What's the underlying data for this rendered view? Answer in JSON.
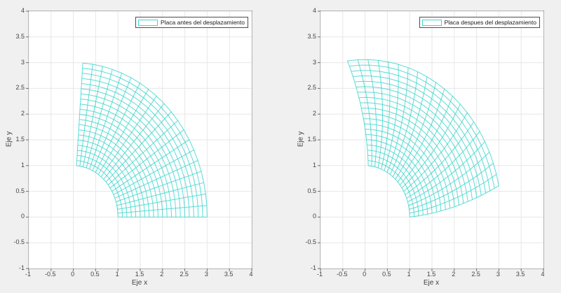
{
  "figure": {
    "colors": {
      "figure_bg": "#f0f0f0",
      "plot_bg": "#ffffff",
      "grid": "#e7e7e7",
      "axis_box": "#8c8c8c",
      "tick_mark": "#6e6e6e",
      "tick_label": "#424242",
      "mesh_line": "#3fd6ce",
      "legend_border": "#4d4d4d",
      "legend_text": "#1a1a1a"
    }
  },
  "chart_data": [
    {
      "type": "mesh",
      "subplot": "left",
      "legend": "Placa antes del desplazamiento",
      "xlabel": "Eje x",
      "ylabel": "Eje y",
      "xlim": [
        -1,
        4
      ],
      "ylim": [
        -1,
        4
      ],
      "xticks": [
        -1,
        -0.5,
        0,
        0.5,
        1,
        1.5,
        2,
        2.5,
        3,
        3.5,
        4
      ],
      "yticks": [
        -1,
        -0.5,
        0,
        0.5,
        1,
        1.5,
        2,
        2.5,
        3,
        3.5,
        4
      ],
      "grid": true,
      "legend_position": "top-right",
      "mesh": {
        "shape": "annular-sector",
        "color": "#3fd6ce",
        "r_min": 1,
        "r_max": 3,
        "r_divisions": 20,
        "theta_min_rad": 0,
        "theta_max_rad": 1.5,
        "theta_divisions": 20,
        "twist_rad_per_unit_r": 0,
        "radial_stretch_coeff": 0
      }
    },
    {
      "type": "mesh",
      "subplot": "right",
      "legend": "Placa despues del desplazamiento",
      "xlabel": "Eje x",
      "ylabel": "Eje y",
      "xlim": [
        -1,
        4
      ],
      "ylim": [
        -1,
        4
      ],
      "xticks": [
        -1,
        -0.5,
        0,
        0.5,
        1,
        1.5,
        2,
        2.5,
        3,
        3.5,
        4
      ],
      "yticks": [
        -1,
        -0.5,
        0,
        0.5,
        1,
        1.5,
        2,
        2.5,
        3,
        3.5,
        4
      ],
      "grid": true,
      "legend_position": "top-right",
      "mesh": {
        "shape": "annular-sector-deformed",
        "color": "#3fd6ce",
        "r_min": 1,
        "r_max": 3,
        "r_divisions": 20,
        "theta_min_rad": 0,
        "theta_max_rad": 1.5,
        "theta_divisions": 20,
        "twist_rad_per_unit_r": 0.1,
        "radial_stretch_coeff": 0.015
      }
    }
  ]
}
